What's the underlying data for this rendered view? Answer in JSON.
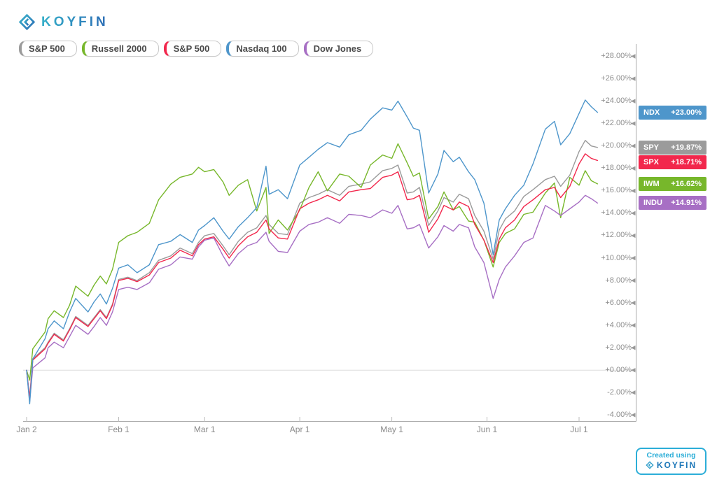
{
  "header": {
    "logo_text": "KOYFIN"
  },
  "legend": {
    "items": [
      {
        "label": "S&P 500",
        "color": "#9B9B9B"
      },
      {
        "label": "Russell 2000",
        "color": "#77B72B"
      },
      {
        "label": "S&P 500",
        "color": "#F2274C"
      },
      {
        "label": "Nasdaq 100",
        "color": "#4E96CB"
      },
      {
        "label": "Dow Jones",
        "color": "#A76FC4"
      }
    ]
  },
  "badge": {
    "line1": "Created using",
    "logo_text": "KOYFIN"
  },
  "chart_data": {
    "type": "line",
    "title": "",
    "xlabel": "",
    "ylabel": "",
    "legend_position": "top-left",
    "grid": "zero-line-only",
    "x_axis": {
      "unit": "day_of_year_2019",
      "range": [
        2,
        188
      ],
      "ticks": [
        {
          "label": "Jan 2",
          "day": 2
        },
        {
          "label": "Feb 1",
          "day": 32
        },
        {
          "label": "Mar 1",
          "day": 60
        },
        {
          "label": "Apr 1",
          "day": 91
        },
        {
          "label": "May 1",
          "day": 121
        },
        {
          "label": "Jun 1",
          "day": 152
        },
        {
          "label": "Jul 1",
          "day": 182
        }
      ]
    },
    "y_axis": {
      "unit": "percent_change",
      "range": [
        -4,
        28
      ],
      "tick_step": 2,
      "tick_values": [
        28,
        26,
        24,
        22,
        20,
        18,
        16,
        14,
        12,
        10,
        8,
        6,
        4,
        2,
        0,
        -2,
        -4
      ],
      "tick_labels": [
        "+28.00%",
        "+26.00%",
        "+24.00%",
        "+22.00%",
        "+20.00%",
        "+18.00%",
        "+16.00%",
        "+14.00%",
        "+12.00%",
        "+10.00%",
        "+8.00%",
        "+6.00%",
        "+4.00%",
        "+2.00%",
        "+0.00%",
        "-2.00%",
        "-4.00%"
      ],
      "zero_gridline": true
    },
    "days": [
      2,
      3,
      4,
      8,
      9,
      11,
      14,
      16,
      18,
      22,
      24,
      26,
      28,
      30,
      32,
      35,
      38,
      42,
      45,
      49,
      52,
      56,
      58,
      60,
      63,
      66,
      68,
      71,
      74,
      77,
      80,
      81,
      84,
      87,
      91,
      94,
      97,
      100,
      104,
      107,
      111,
      114,
      118,
      121,
      123,
      126,
      128,
      130,
      133,
      136,
      138,
      141,
      143,
      146,
      148,
      151,
      154,
      156,
      158,
      161,
      164,
      167,
      171,
      174,
      176,
      179,
      182,
      184,
      186,
      188
    ],
    "series": [
      {
        "name": "S&P 500",
        "ticker": "SPY",
        "change_label": "+19.87%",
        "end_value": 19.87,
        "color": "#9B9B9B",
        "values": [
          0,
          -2.4,
          1.0,
          2.0,
          2.5,
          3.3,
          2.7,
          3.7,
          4.8,
          4.0,
          4.7,
          5.4,
          4.7,
          5.9,
          8.1,
          8.3,
          8.0,
          8.7,
          9.8,
          10.2,
          10.9,
          10.4,
          11.4,
          12.0,
          12.2,
          11.1,
          10.3,
          11.5,
          12.3,
          12.7,
          13.8,
          13.0,
          12.2,
          12.1,
          14.9,
          15.4,
          15.7,
          16.1,
          15.6,
          16.4,
          16.6,
          16.8,
          17.8,
          18.0,
          18.3,
          15.8,
          15.9,
          16.3,
          12.9,
          14.2,
          15.4,
          15.0,
          15.7,
          15.3,
          13.8,
          12.4,
          9.9,
          12.5,
          13.5,
          14.2,
          15.5,
          16.1,
          17.0,
          17.3,
          16.4,
          17.4,
          19.5,
          20.5,
          20.0,
          19.87
        ]
      },
      {
        "name": "Russell 2000",
        "ticker": "IWM",
        "change_label": "+16.62%",
        "end_value": 16.62,
        "color": "#77B72B",
        "values": [
          0,
          -0.9,
          1.9,
          3.4,
          4.6,
          5.3,
          4.7,
          5.8,
          7.5,
          6.6,
          7.6,
          8.4,
          7.7,
          9.0,
          11.4,
          12.0,
          12.3,
          13.1,
          15.2,
          16.6,
          17.2,
          17.5,
          18.1,
          17.7,
          17.9,
          16.8,
          15.6,
          16.5,
          17.0,
          14.2,
          16.3,
          12.2,
          13.4,
          12.5,
          14.3,
          16.3,
          17.7,
          16.0,
          17.5,
          17.3,
          16.3,
          18.3,
          19.2,
          18.9,
          20.2,
          18.5,
          17.3,
          17.6,
          13.5,
          14.6,
          15.9,
          14.3,
          14.6,
          13.3,
          13.2,
          11.6,
          9.2,
          11.4,
          12.2,
          12.6,
          13.9,
          14.1,
          15.8,
          16.7,
          13.6,
          17.2,
          16.5,
          17.8,
          16.9,
          16.62
        ]
      },
      {
        "name": "S&P 500",
        "ticker": "SPX",
        "change_label": "+18.71%",
        "end_value": 18.71,
        "color": "#F2274C",
        "values": [
          0,
          -2.5,
          0.9,
          1.9,
          2.4,
          3.2,
          2.6,
          3.6,
          4.7,
          3.9,
          4.6,
          5.3,
          4.6,
          5.8,
          8.0,
          8.2,
          7.9,
          8.5,
          9.6,
          10.0,
          10.7,
          10.2,
          11.2,
          11.7,
          11.9,
          10.8,
          10.0,
          11.1,
          11.9,
          12.3,
          13.4,
          12.6,
          11.8,
          11.7,
          14.4,
          14.9,
          15.2,
          15.6,
          15.1,
          15.9,
          16.1,
          16.2,
          17.2,
          17.4,
          17.7,
          15.2,
          15.3,
          15.6,
          12.3,
          13.5,
          14.7,
          14.3,
          15.0,
          14.6,
          13.0,
          11.6,
          9.6,
          11.7,
          12.7,
          13.4,
          14.6,
          15.2,
          16.1,
          16.3,
          15.4,
          16.4,
          18.4,
          19.3,
          18.9,
          18.71
        ]
      },
      {
        "name": "Dow Jones",
        "ticker": "INDU",
        "change_label": "+14.91%",
        "end_value": 14.91,
        "color": "#A76FC4",
        "values": [
          0,
          -2.8,
          0.2,
          1.1,
          2.0,
          2.5,
          2.0,
          3.0,
          4.0,
          3.2,
          3.9,
          4.7,
          4.0,
          5.2,
          7.2,
          7.4,
          7.2,
          7.8,
          9.0,
          9.4,
          10.1,
          9.9,
          11.0,
          11.6,
          11.8,
          10.2,
          9.3,
          10.4,
          11.1,
          11.4,
          12.3,
          11.5,
          10.6,
          10.5,
          12.4,
          13.0,
          13.2,
          13.6,
          13.1,
          13.9,
          13.8,
          13.6,
          14.3,
          14.0,
          14.7,
          12.6,
          12.7,
          13.0,
          10.9,
          11.9,
          12.9,
          12.4,
          13.0,
          12.7,
          11.0,
          9.6,
          6.4,
          8.1,
          9.2,
          10.2,
          11.4,
          11.8,
          14.7,
          14.2,
          13.8,
          14.4,
          15.0,
          15.6,
          15.3,
          14.91
        ]
      },
      {
        "name": "Nasdaq 100",
        "ticker": "NDX",
        "change_label": "+23.00%",
        "end_value": 23.0,
        "color": "#4E96CB",
        "values": [
          0,
          -3.0,
          1.0,
          2.8,
          3.7,
          4.4,
          3.7,
          5.2,
          6.4,
          5.2,
          6.1,
          6.8,
          5.9,
          7.3,
          9.1,
          9.4,
          8.7,
          9.4,
          11.2,
          11.5,
          12.1,
          11.4,
          12.5,
          12.9,
          13.6,
          12.4,
          11.7,
          12.8,
          13.6,
          14.5,
          18.2,
          15.7,
          16.1,
          15.3,
          18.3,
          19.0,
          19.7,
          20.3,
          19.9,
          21.0,
          21.4,
          22.4,
          23.4,
          23.2,
          24.0,
          22.6,
          21.6,
          21.4,
          15.8,
          17.5,
          19.6,
          18.6,
          19.0,
          17.7,
          17.0,
          14.9,
          10.3,
          13.4,
          14.4,
          15.6,
          16.5,
          18.4,
          21.5,
          22.2,
          20.1,
          21.1,
          22.9,
          24.1,
          23.5,
          23.0
        ]
      }
    ]
  }
}
